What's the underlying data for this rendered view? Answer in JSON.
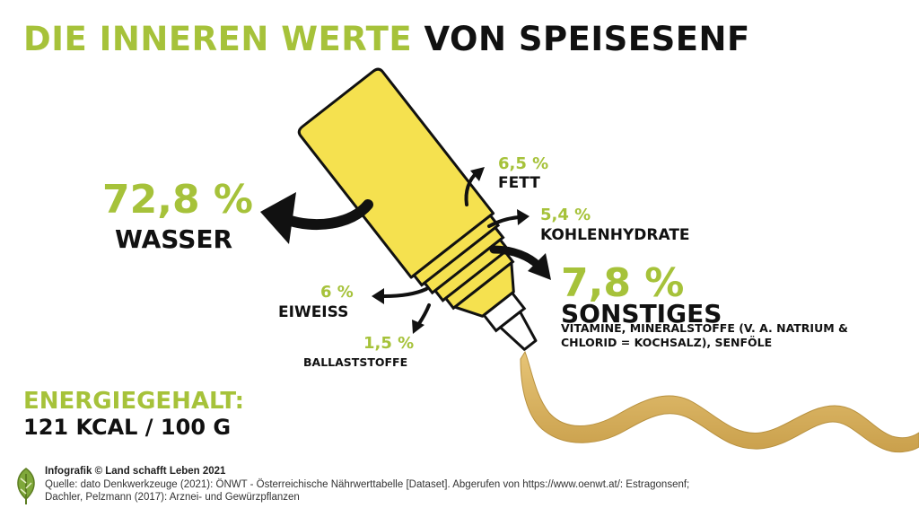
{
  "title": {
    "green": "DIE INNEREN WERTE",
    "black": "VON SPEISESENF"
  },
  "components": {
    "wasser": {
      "percent": "72,8 %",
      "name": "WASSER"
    },
    "fett": {
      "percent": "6,5 %",
      "name": "FETT"
    },
    "kohlenhydrate": {
      "percent": "5,4 %",
      "name": "KOHLENHYDRATE"
    },
    "sonstiges": {
      "percent": "7,8 %",
      "name": "SONSTIGES",
      "description": "VITAMINE, MINERALSTOFFE (V. A. NATRIUM & CHLORID = KOCHSALZ), SENFÖLE"
    },
    "eiweiss": {
      "percent": "6 %",
      "name": "EIWEISS"
    },
    "ballaststoffe": {
      "percent": "1,5 %",
      "name": "BALLASTSTOFFE"
    }
  },
  "energy": {
    "title": "ENERGIEGEHALT:",
    "value": "121 KCAL / 100 G"
  },
  "footer": {
    "credit": "Infografik © Land schafft Leben 2021",
    "source": "Quelle: dato Denkwerkzeuge (2021): ÖNWT - Österreichische Nährwerttabelle [Dataset]. Abgerufen von https://www.oenwt.at/: Estragonsenf; Dachler, Pelzmann (2017): Arznei- und Gewürzpflanzen"
  },
  "colors": {
    "accent_green": "#a6c23a",
    "bottle_yellow": "#f5e14f",
    "mustard": "#d9b35c",
    "text": "#111111"
  },
  "icons": {
    "bottle": "mustard-bottle-illustration",
    "stream": "mustard-stream",
    "arrows": "curved-arrow",
    "logo": "leaf-logo-icon"
  }
}
